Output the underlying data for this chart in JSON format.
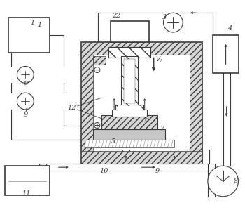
{
  "bg_color": "#ffffff",
  "lc": "#4a4a4a",
  "figsize": [
    3.5,
    2.99
  ],
  "dpi": 100
}
